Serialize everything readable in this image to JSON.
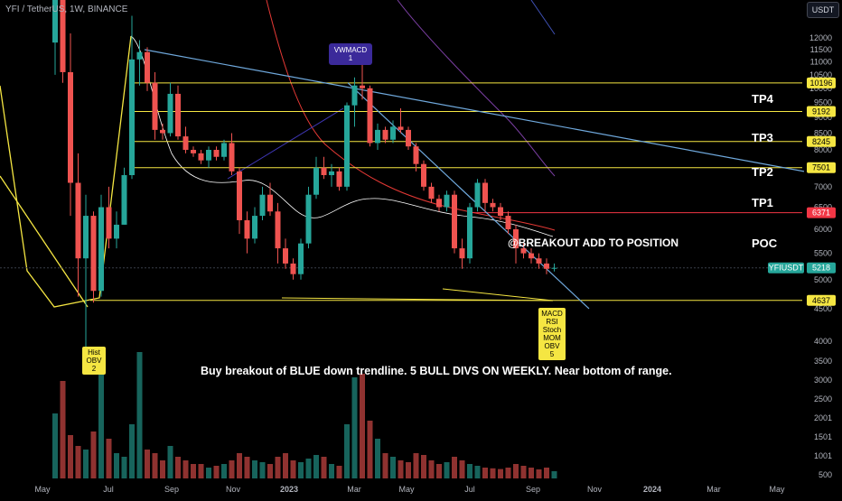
{
  "header": {
    "symbol_title": "YFI / TetherUS, 1W, BINANCE",
    "currency": "USDT"
  },
  "annotations": {
    "main_text": "Buy breakout of BLUE down trendline.  5 BULL DIVS ON WEEKLY. Near bottom of range.",
    "breakout_text": "@BREAKOUT ADD TO POSITION",
    "vwmacd_callout": [
      "VWMACD",
      "1"
    ],
    "divs_callout": [
      "MACD",
      "RSI",
      "Stoch",
      "MOM",
      "OBV",
      "5"
    ],
    "hist_callout": [
      "Hist",
      "OBV",
      "2"
    ]
  },
  "colors": {
    "background": "#000000",
    "candle_up": "#26a69a",
    "candle_down": "#ef5350",
    "level_yellow": "#f5e642",
    "poc_red": "#f23645",
    "trendline_blue": "#6fa8dc",
    "ma_white": "#ffffff",
    "ma_red": "#e53935",
    "ma_purple": "#7b3fa3",
    "ma_indigo": "#3f51b5",
    "callout_purple": "#3b2a9a",
    "price_tag_teal": "#26a69a"
  },
  "chart_data": {
    "type": "candlestick",
    "title": "YFI / TetherUS, 1W, BINANCE",
    "y_axis": {
      "scale": "log",
      "ticks": [
        "500",
        "1001",
        "1501",
        "2001",
        "2500",
        "3000",
        "3500",
        "4000",
        "4500",
        "5000",
        "5500",
        "6000",
        "6500",
        "7000",
        "7500",
        "8000",
        "8500",
        "9000",
        "9500",
        "10000",
        "10500",
        "11000",
        "11500",
        "12000"
      ],
      "tick_values": [
        500,
        1001,
        1501,
        2001,
        2500,
        3000,
        3500,
        4000,
        4500,
        5000,
        5500,
        6000,
        6500,
        7000,
        7500,
        8000,
        8500,
        9000,
        9500,
        10000,
        10500,
        11000,
        11500,
        12000
      ]
    },
    "x_axis": {
      "ticks": [
        "May",
        "Jul",
        "Sep",
        "Nov",
        "2023",
        "Mar",
        "May",
        "Jul",
        "Sep",
        "Nov",
        "2024",
        "Mar",
        "May"
      ]
    },
    "levels": [
      {
        "name": "TP4",
        "value": 10196,
        "label": "10196",
        "color": "#f5e642"
      },
      {
        "name": "TP3",
        "value": 9192,
        "label": "9192",
        "color": "#f5e642"
      },
      {
        "name": "TP2",
        "value": 8245,
        "label": "8245",
        "color": "#f5e642"
      },
      {
        "name": "TP1",
        "value": 7501,
        "label": "7501",
        "color": "#f5e642"
      },
      {
        "name": "POC",
        "value": 6371,
        "label": "6371",
        "color": "#f23645"
      },
      {
        "name": "",
        "value": 4637,
        "label": "4637",
        "color": "#f5e642"
      }
    ],
    "last_price": {
      "label": "YFIUSDT",
      "value": 5218,
      "text": "5218"
    },
    "candles": [
      [
        11800,
        15500,
        10500,
        14900
      ],
      [
        14900,
        15600,
        10200,
        10600
      ],
      [
        10600,
        12200,
        6300,
        7100
      ],
      [
        7100,
        7900,
        4700,
        5400
      ],
      [
        5400,
        6800,
        3900,
        6300
      ],
      [
        6300,
        6400,
        4600,
        4800
      ],
      [
        4800,
        6800,
        4700,
        6500
      ],
      [
        6500,
        7000,
        5600,
        5800
      ],
      [
        5800,
        6400,
        5600,
        6100
      ],
      [
        6100,
        7500,
        6100,
        7300
      ],
      [
        7300,
        13000,
        7200,
        11100
      ],
      [
        11100,
        11900,
        10100,
        11400
      ],
      [
        11400,
        11600,
        9900,
        10200
      ],
      [
        10200,
        10600,
        8300,
        8600
      ],
      [
        8600,
        8800,
        8300,
        8500
      ],
      [
        8500,
        10200,
        8400,
        9800
      ],
      [
        9800,
        10100,
        8300,
        8400
      ],
      [
        8400,
        8700,
        7900,
        8000
      ],
      [
        8000,
        8100,
        7800,
        7900
      ],
      [
        7900,
        8000,
        7600,
        7700
      ],
      [
        7700,
        8100,
        7500,
        8000
      ],
      [
        8000,
        8100,
        7700,
        7800
      ],
      [
        7800,
        8300,
        7700,
        8200
      ],
      [
        8200,
        8500,
        7300,
        7400
      ],
      [
        7400,
        7500,
        5900,
        6200
      ],
      [
        6200,
        6400,
        5500,
        5800
      ],
      [
        5800,
        6500,
        5700,
        6300
      ],
      [
        6300,
        7000,
        6200,
        6800
      ],
      [
        6800,
        7100,
        6300,
        6400
      ],
      [
        6400,
        6600,
        5300,
        5600
      ],
      [
        5600,
        5800,
        5200,
        5300
      ],
      [
        5300,
        5400,
        5000,
        5100
      ],
      [
        5100,
        5800,
        5000,
        5700
      ],
      [
        5700,
        7000,
        5600,
        6800
      ],
      [
        6800,
        7800,
        6700,
        7500
      ],
      [
        7500,
        7800,
        7200,
        7300
      ],
      [
        7300,
        7600,
        7000,
        7400
      ],
      [
        7400,
        7500,
        6900,
        7000
      ],
      [
        7000,
        9500,
        6900,
        9400
      ],
      [
        9400,
        10400,
        8700,
        10100
      ],
      [
        10100,
        11200,
        9600,
        10000
      ],
      [
        10000,
        10100,
        8100,
        8200
      ],
      [
        8200,
        8800,
        8000,
        8600
      ],
      [
        8600,
        8700,
        8200,
        8300
      ],
      [
        8300,
        8900,
        8200,
        8700
      ],
      [
        8700,
        9300,
        8500,
        8600
      ],
      [
        8600,
        8700,
        8000,
        8100
      ],
      [
        8100,
        8200,
        7400,
        7600
      ],
      [
        7600,
        7700,
        6900,
        7000
      ],
      [
        7000,
        7100,
        6600,
        6700
      ],
      [
        6700,
        6800,
        6400,
        6500
      ],
      [
        6500,
        6900,
        6400,
        6800
      ],
      [
        6800,
        6900,
        5500,
        5600
      ],
      [
        5600,
        5800,
        5200,
        5400
      ],
      [
        5400,
        6600,
        5300,
        6500
      ],
      [
        6500,
        7200,
        6400,
        7100
      ],
      [
        7100,
        7200,
        6400,
        6600
      ],
      [
        6600,
        6700,
        6400,
        6500
      ],
      [
        6500,
        6600,
        6200,
        6300
      ],
      [
        6300,
        6400,
        5900,
        6000
      ],
      [
        6000,
        6100,
        5300,
        5600
      ],
      [
        5600,
        5700,
        5400,
        5500
      ],
      [
        5500,
        5600,
        5300,
        5400
      ],
      [
        5400,
        5500,
        5200,
        5300
      ],
      [
        5300,
        5400,
        5100,
        5200
      ],
      [
        5200,
        5300,
        5150,
        5218
      ]
    ],
    "volume": [
      1800,
      2700,
      1200,
      900,
      800,
      1300,
      3400,
      1100,
      700,
      600,
      1500,
      3500,
      800,
      700,
      500,
      900,
      600,
      500,
      400,
      400,
      300,
      350,
      400,
      500,
      700,
      600,
      500,
      450,
      400,
      600,
      700,
      500,
      450,
      550,
      650,
      600,
      400,
      350,
      1500,
      2800,
      2900,
      1600,
      1100,
      700,
      600,
      500,
      450,
      700,
      650,
      500,
      400,
      450,
      600,
      500,
      400,
      350,
      300,
      280,
      260,
      300,
      400,
      350,
      300,
      250,
      300,
      200
    ],
    "trendlines": [
      {
        "name": "blue-down-trendline",
        "from": {
          "time": "Jul 2022",
          "price": 11500
        },
        "to": {
          "time": "Nov 2023",
          "price": 7400
        }
      },
      {
        "name": "blue-breakout-trendline",
        "from": {
          "time": "Feb 2023",
          "price": 10200
        },
        "to": {
          "time": "Oct 2023",
          "price": 4500
        }
      }
    ]
  }
}
